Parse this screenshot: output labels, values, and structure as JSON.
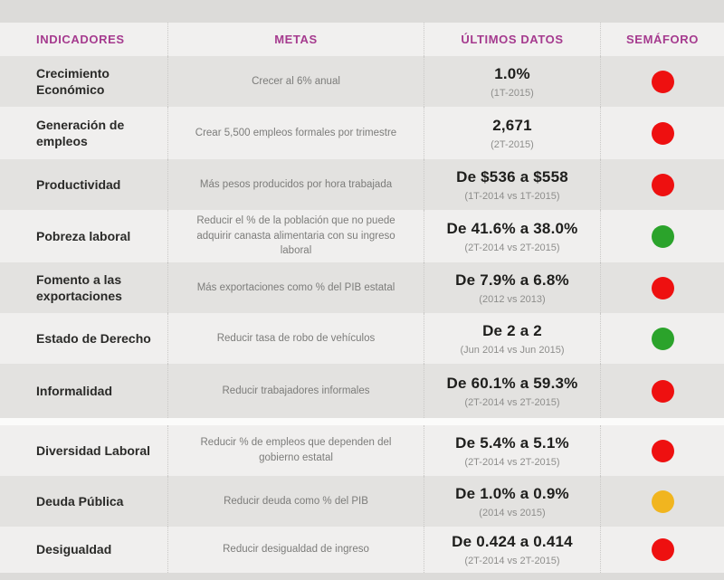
{
  "colors": {
    "accent": "#a53a8e",
    "status_red": "#ee1010",
    "status_green": "#2ba32b",
    "status_yellow": "#f1b51f"
  },
  "chart_data": {
    "type": "table",
    "columns": [
      "INDICADORES",
      "METAS",
      "ÚLTIMOS DATOS",
      "SEMÁFORO"
    ],
    "rows": [
      {
        "indicador": "Crecimiento Económico",
        "meta": "Crecer al 6% anual",
        "valor": "1.0%",
        "periodo": "(1T-2015)",
        "semaforo": "red"
      },
      {
        "indicador": "Generación de empleos",
        "meta": "Crear 5,500 empleos formales por trimestre",
        "valor": "2,671",
        "periodo": "(2T-2015)",
        "semaforo": "red"
      },
      {
        "indicador": "Productividad",
        "meta": "Más pesos producidos por hora trabajada",
        "valor": "De $536 a $558",
        "periodo": "(1T-2014 vs 1T-2015)",
        "semaforo": "red"
      },
      {
        "indicador": "Pobreza laboral",
        "meta": "Reducir el % de la población que no puede adquirir canasta alimentaria con su ingreso laboral",
        "valor": "De 41.6% a 38.0%",
        "periodo": "(2T-2014 vs 2T-2015)",
        "semaforo": "green"
      },
      {
        "indicador": "Fomento a las exportaciones",
        "meta": "Más exportaciones como % del PIB estatal",
        "valor": "De 7.9% a 6.8%",
        "periodo": "(2012 vs 2013)",
        "semaforo": "red"
      },
      {
        "indicador": "Estado de Derecho",
        "meta": "Reducir tasa de robo de vehículos",
        "valor": "De 2 a 2",
        "periodo": "(Jun 2014 vs Jun 2015)",
        "semaforo": "green"
      },
      {
        "indicador": "Informalidad",
        "meta": "Reducir trabajadores informales",
        "valor": "De 60.1% a 59.3%",
        "periodo": "(2T-2014 vs 2T-2015)",
        "semaforo": "red"
      },
      {
        "indicador": "Diversidad Laboral",
        "meta": "Reducir % de empleos que dependen del gobierno estatal",
        "valor": "De 5.4% a 5.1%",
        "periodo": "(2T-2014 vs 2T-2015)",
        "semaforo": "red"
      },
      {
        "indicador": "Deuda Pública",
        "meta": "Reducir deuda como % del PIB",
        "valor": "De 1.0% a 0.9%",
        "periodo": "(2014 vs 2015)",
        "semaforo": "yellow"
      },
      {
        "indicador": "Desigualdad",
        "meta": "Reducir desigualdad de ingreso",
        "valor": "De 0.424 a 0.414",
        "periodo": "(2T-2014 vs 2T-2015)",
        "semaforo": "red"
      }
    ]
  }
}
